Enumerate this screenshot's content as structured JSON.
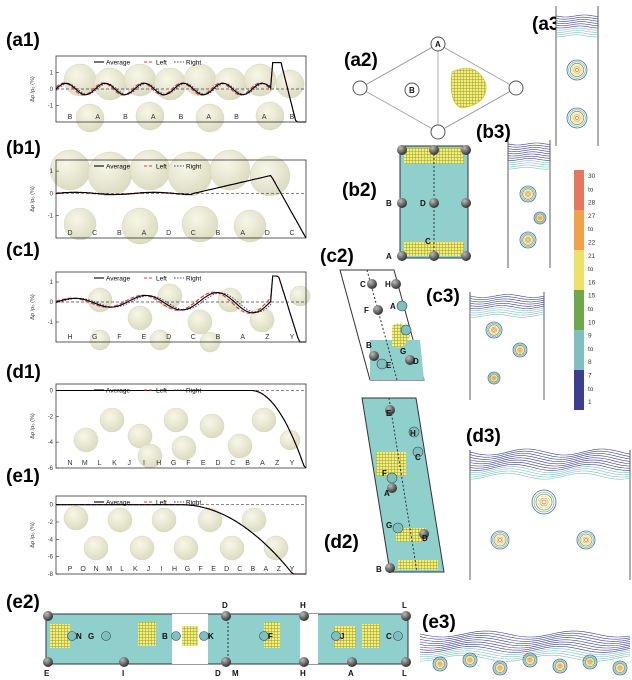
{
  "panel_labels": {
    "a1": "(a1)",
    "a2": "(a2)",
    "a3": "(a3)",
    "b1": "(b1)",
    "b2": "(b2)",
    "b3": "(b3)",
    "c1": "(c1)",
    "c2": "(c2)",
    "c3": "(c3)",
    "d1": "(d1)",
    "d2": "(d2)",
    "d3": "(d3)",
    "e1": "(e1)",
    "e2": "(e2)",
    "e3": "(e3)"
  },
  "legend": {
    "average": "Average",
    "left": "Left",
    "right": "Right"
  },
  "y_axis_label": "Δρ /ρ₀ (%)",
  "chart_data": [
    {
      "panel": "a1",
      "type": "line",
      "ylim": [
        -2,
        2
      ],
      "yticks": [
        "1",
        "0",
        "-1"
      ],
      "sites": [
        "B",
        "A",
        "B",
        "A",
        "B",
        "A",
        "B",
        "A",
        "B"
      ],
      "series": [
        {
          "name": "Average"
        },
        {
          "name": "Left"
        },
        {
          "name": "Right"
        }
      ]
    },
    {
      "panel": "b1",
      "type": "line",
      "ylim": [
        -2,
        1.5
      ],
      "yticks": [
        "1",
        "0",
        "-1"
      ],
      "sites": [
        "D",
        "C",
        "B",
        "A",
        "D",
        "C",
        "B",
        "A",
        "D",
        "C"
      ],
      "series": [
        {
          "name": "Average"
        },
        {
          "name": "Left"
        },
        {
          "name": "Right"
        }
      ]
    },
    {
      "panel": "c1",
      "type": "line",
      "ylim": [
        -2,
        1.5
      ],
      "yticks": [
        "1",
        "0",
        "-1"
      ],
      "sites": [
        "H",
        "G",
        "F",
        "E",
        "D",
        "C",
        "B",
        "A",
        "Z",
        "Y"
      ],
      "series": [
        {
          "name": "Average"
        },
        {
          "name": "Left"
        },
        {
          "name": "Right"
        }
      ]
    },
    {
      "panel": "d1",
      "type": "line",
      "ylim": [
        -6,
        0.5
      ],
      "yticks": [
        "0",
        "-2",
        "-4",
        "-6"
      ],
      "sites": [
        "N",
        "M",
        "L",
        "K",
        "J",
        "I",
        "H",
        "G",
        "F",
        "E",
        "D",
        "C",
        "B",
        "A",
        "Z",
        "Y"
      ],
      "series": [
        {
          "name": "Average"
        },
        {
          "name": "Left"
        },
        {
          "name": "Right"
        }
      ]
    },
    {
      "panel": "e1",
      "type": "line",
      "ylim": [
        -8,
        1
      ],
      "yticks": [
        "0",
        "-2",
        "-4",
        "-6",
        "-8"
      ],
      "sites": [
        "P",
        "O",
        "N",
        "M",
        "L",
        "K",
        "J",
        "I",
        "H",
        "G",
        "F",
        "E",
        "D",
        "C",
        "B",
        "A",
        "Z",
        "Y"
      ],
      "series": [
        {
          "name": "Average"
        },
        {
          "name": "Left"
        },
        {
          "name": "Right"
        }
      ]
    }
  ],
  "colorbar": {
    "labels": [
      "30",
      "to",
      "28",
      "27",
      "to",
      "22",
      "21",
      "to",
      "16",
      "15",
      "to",
      "10",
      "9",
      "to",
      "8",
      "7",
      "to",
      "1"
    ],
    "colors": [
      "#e3785f",
      "#f0a14a",
      "#eee06a",
      "#6ea84a",
      "#7ebfbf",
      "#3c3f90"
    ]
  },
  "atoms": {
    "a2": [
      "A",
      "B"
    ],
    "b2": [
      "B",
      "D",
      "C",
      "A"
    ],
    "c2": [
      "C",
      "H",
      "F",
      "A",
      "B",
      "E",
      "G",
      "D"
    ],
    "d2": [
      "E",
      "H",
      "C",
      "F",
      "A",
      "G",
      "D",
      "B"
    ],
    "e2": [
      "N",
      "G",
      "E",
      "I",
      "B",
      "K",
      "D",
      "D",
      "M",
      "H",
      "F",
      "H",
      "J",
      "A",
      "L",
      "C",
      "L"
    ]
  }
}
